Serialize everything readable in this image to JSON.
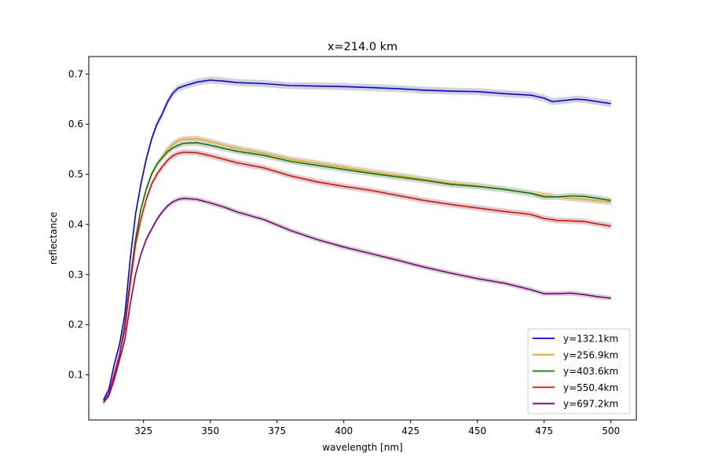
{
  "chart_data": {
    "type": "line",
    "title": "x=214.0 km",
    "xlabel": "wavelength [nm]",
    "ylabel": "reflectance",
    "xlim": [
      304.5,
      509.5
    ],
    "ylim": [
      0.01,
      0.735
    ],
    "xticks": [
      325,
      350,
      375,
      400,
      425,
      450,
      475,
      500
    ],
    "yticks": [
      0.1,
      0.2,
      0.3,
      0.4,
      0.5,
      0.6,
      0.7
    ],
    "grid": false,
    "legend_position": "lower-right",
    "band_color": "#d3d3d3",
    "series": [
      {
        "name": "y=132.1km",
        "color": "#0000ff",
        "band": 0.007,
        "points": [
          [
            310,
            0.05
          ],
          [
            312,
            0.07
          ],
          [
            314,
            0.12
          ],
          [
            316,
            0.16
          ],
          [
            318,
            0.22
          ],
          [
            320,
            0.33
          ],
          [
            322,
            0.42
          ],
          [
            324,
            0.48
          ],
          [
            326,
            0.53
          ],
          [
            328,
            0.57
          ],
          [
            330,
            0.6
          ],
          [
            332,
            0.62
          ],
          [
            334,
            0.645
          ],
          [
            336,
            0.662
          ],
          [
            338,
            0.672
          ],
          [
            340,
            0.676
          ],
          [
            345,
            0.684
          ],
          [
            350,
            0.688
          ],
          [
            355,
            0.686
          ],
          [
            360,
            0.683
          ],
          [
            370,
            0.681
          ],
          [
            380,
            0.677
          ],
          [
            390,
            0.676
          ],
          [
            400,
            0.675
          ],
          [
            410,
            0.673
          ],
          [
            420,
            0.671
          ],
          [
            430,
            0.668
          ],
          [
            440,
            0.666
          ],
          [
            450,
            0.665
          ],
          [
            460,
            0.661
          ],
          [
            470,
            0.658
          ],
          [
            475,
            0.652
          ],
          [
            478,
            0.645
          ],
          [
            482,
            0.647
          ],
          [
            487,
            0.65
          ],
          [
            490,
            0.649
          ],
          [
            495,
            0.645
          ],
          [
            500,
            0.641
          ]
        ]
      },
      {
        "name": "y=256.9km",
        "color": "#ffa500",
        "band": 0.006,
        "points": [
          [
            310,
            0.045
          ],
          [
            312,
            0.062
          ],
          [
            314,
            0.1
          ],
          [
            316,
            0.14
          ],
          [
            318,
            0.2
          ],
          [
            320,
            0.29
          ],
          [
            322,
            0.37
          ],
          [
            324,
            0.43
          ],
          [
            326,
            0.47
          ],
          [
            328,
            0.5
          ],
          [
            330,
            0.52
          ],
          [
            332,
            0.535
          ],
          [
            334,
            0.55
          ],
          [
            336,
            0.56
          ],
          [
            338,
            0.567
          ],
          [
            340,
            0.57
          ],
          [
            345,
            0.571
          ],
          [
            350,
            0.565
          ],
          [
            355,
            0.558
          ],
          [
            360,
            0.552
          ],
          [
            370,
            0.542
          ],
          [
            380,
            0.53
          ],
          [
            390,
            0.522
          ],
          [
            400,
            0.514
          ],
          [
            410,
            0.505
          ],
          [
            420,
            0.498
          ],
          [
            430,
            0.49
          ],
          [
            440,
            0.482
          ],
          [
            450,
            0.477
          ],
          [
            460,
            0.47
          ],
          [
            470,
            0.462
          ],
          [
            480,
            0.455
          ],
          [
            490,
            0.45
          ],
          [
            500,
            0.445
          ]
        ]
      },
      {
        "name": "y=403.6km",
        "color": "#008000",
        "band": 0.006,
        "points": [
          [
            310,
            0.045
          ],
          [
            312,
            0.062
          ],
          [
            314,
            0.1
          ],
          [
            316,
            0.14
          ],
          [
            318,
            0.2
          ],
          [
            320,
            0.29
          ],
          [
            322,
            0.37
          ],
          [
            324,
            0.43
          ],
          [
            326,
            0.47
          ],
          [
            328,
            0.5
          ],
          [
            330,
            0.52
          ],
          [
            332,
            0.533
          ],
          [
            334,
            0.545
          ],
          [
            336,
            0.553
          ],
          [
            338,
            0.558
          ],
          [
            340,
            0.562
          ],
          [
            345,
            0.563
          ],
          [
            350,
            0.558
          ],
          [
            355,
            0.552
          ],
          [
            360,
            0.546
          ],
          [
            370,
            0.538
          ],
          [
            380,
            0.526
          ],
          [
            390,
            0.518
          ],
          [
            400,
            0.51
          ],
          [
            410,
            0.502
          ],
          [
            420,
            0.495
          ],
          [
            430,
            0.488
          ],
          [
            440,
            0.48
          ],
          [
            450,
            0.476
          ],
          [
            460,
            0.47
          ],
          [
            470,
            0.462
          ],
          [
            475,
            0.455
          ],
          [
            480,
            0.455
          ],
          [
            485,
            0.457
          ],
          [
            490,
            0.456
          ],
          [
            495,
            0.452
          ],
          [
            500,
            0.448
          ]
        ]
      },
      {
        "name": "y=550.4km",
        "color": "#ff0000",
        "band": 0.006,
        "points": [
          [
            310,
            0.045
          ],
          [
            312,
            0.06
          ],
          [
            314,
            0.1
          ],
          [
            316,
            0.14
          ],
          [
            318,
            0.19
          ],
          [
            320,
            0.28
          ],
          [
            322,
            0.36
          ],
          [
            324,
            0.41
          ],
          [
            326,
            0.45
          ],
          [
            328,
            0.48
          ],
          [
            330,
            0.5
          ],
          [
            332,
            0.515
          ],
          [
            334,
            0.528
          ],
          [
            336,
            0.537
          ],
          [
            338,
            0.542
          ],
          [
            340,
            0.544
          ],
          [
            345,
            0.543
          ],
          [
            350,
            0.537
          ],
          [
            355,
            0.53
          ],
          [
            360,
            0.523
          ],
          [
            370,
            0.513
          ],
          [
            380,
            0.497
          ],
          [
            390,
            0.485
          ],
          [
            400,
            0.476
          ],
          [
            410,
            0.468
          ],
          [
            420,
            0.458
          ],
          [
            430,
            0.448
          ],
          [
            440,
            0.44
          ],
          [
            450,
            0.433
          ],
          [
            460,
            0.426
          ],
          [
            470,
            0.42
          ],
          [
            475,
            0.412
          ],
          [
            480,
            0.408
          ],
          [
            490,
            0.406
          ],
          [
            495,
            0.401
          ],
          [
            500,
            0.397
          ]
        ]
      },
      {
        "name": "y=697.2km",
        "color": "#800080",
        "band": 0.005,
        "points": [
          [
            310,
            0.045
          ],
          [
            312,
            0.058
          ],
          [
            314,
            0.09
          ],
          [
            316,
            0.13
          ],
          [
            318,
            0.17
          ],
          [
            320,
            0.24
          ],
          [
            322,
            0.3
          ],
          [
            324,
            0.34
          ],
          [
            326,
            0.37
          ],
          [
            328,
            0.39
          ],
          [
            330,
            0.41
          ],
          [
            332,
            0.425
          ],
          [
            334,
            0.437
          ],
          [
            336,
            0.445
          ],
          [
            338,
            0.45
          ],
          [
            340,
            0.452
          ],
          [
            345,
            0.45
          ],
          [
            350,
            0.443
          ],
          [
            355,
            0.435
          ],
          [
            360,
            0.425
          ],
          [
            370,
            0.41
          ],
          [
            380,
            0.388
          ],
          [
            390,
            0.37
          ],
          [
            400,
            0.355
          ],
          [
            410,
            0.342
          ],
          [
            420,
            0.329
          ],
          [
            430,
            0.315
          ],
          [
            440,
            0.303
          ],
          [
            450,
            0.292
          ],
          [
            460,
            0.283
          ],
          [
            470,
            0.27
          ],
          [
            475,
            0.262
          ],
          [
            480,
            0.262
          ],
          [
            485,
            0.263
          ],
          [
            490,
            0.26
          ],
          [
            495,
            0.256
          ],
          [
            500,
            0.253
          ]
        ]
      }
    ]
  }
}
